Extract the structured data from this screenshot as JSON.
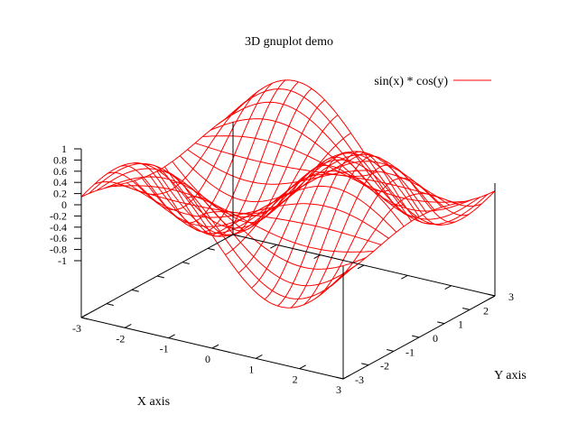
{
  "chart_data": {
    "type": "surface",
    "title": "3D gnuplot demo",
    "xlabel": "X axis",
    "ylabel": "Y axis",
    "zlabel": "",
    "function": "sin(x) * cos(y)",
    "series": [
      {
        "name": "sin(x) * cos(y)",
        "color": "#ff0000",
        "style": "wireframe"
      }
    ],
    "xrange": [
      -3,
      3
    ],
    "yrange": [
      -3,
      3
    ],
    "zrange": [
      -1,
      1
    ],
    "x_ticks": [
      "-3",
      "-2",
      "-1",
      "0",
      "1",
      "2",
      "3"
    ],
    "y_ticks": [
      "-3",
      "-2",
      "-1",
      "0",
      "1",
      "2",
      "3"
    ],
    "z_ticks": [
      "-1",
      "-0.8",
      "-0.6",
      "-0.4",
      "-0.2",
      "0",
      "0.2",
      "0.4",
      "0.6",
      "0.8",
      "1"
    ],
    "isosamples": 20,
    "legend_position": "top-right",
    "grid": false
  }
}
